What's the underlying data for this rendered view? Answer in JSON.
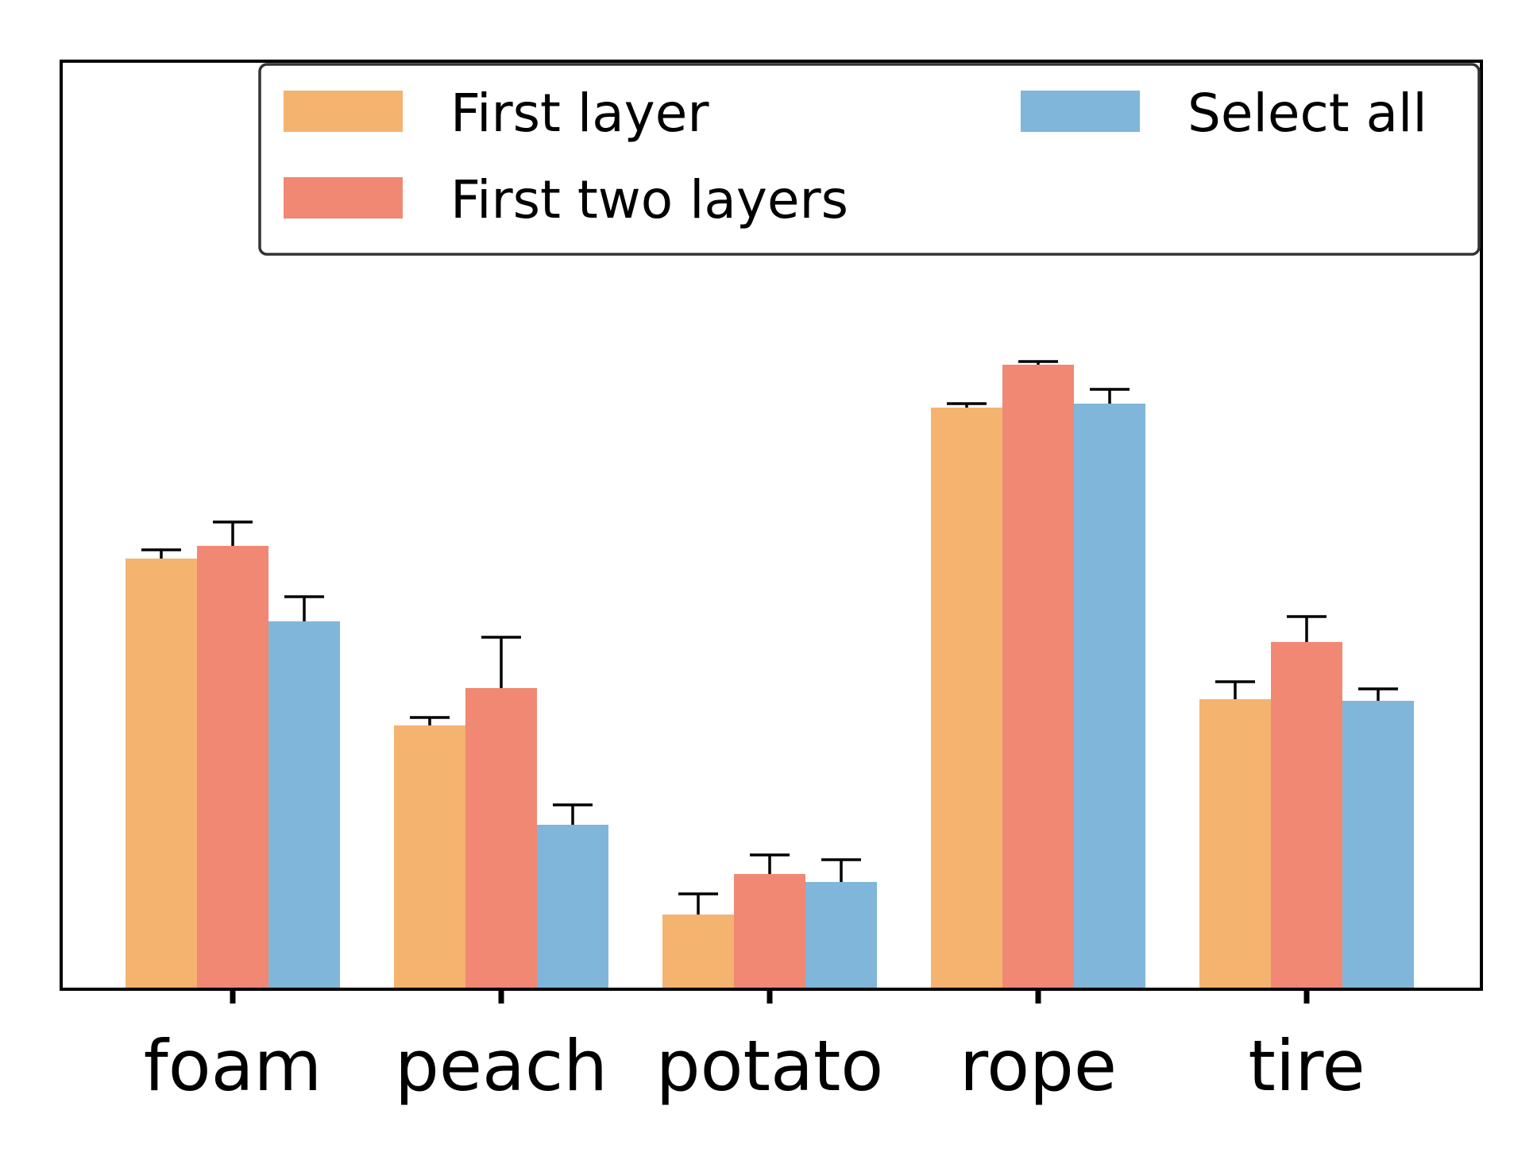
{
  "chart_data": {
    "type": "bar",
    "title": "",
    "xlabel": "",
    "ylabel": "",
    "y_ticks_visible": false,
    "ylim": [
      0,
      1.0
    ],
    "grid": false,
    "legend_placement": "top-right",
    "legend_columns": 2,
    "categories": [
      "foam",
      "peach",
      "potato",
      "rope",
      "tire"
    ],
    "series": [
      {
        "name": "First layer",
        "color": "#F4B36F",
        "values": [
          0.54,
          0.33,
          0.092,
          0.73,
          0.363
        ],
        "errors": [
          0.011,
          0.01,
          0.026,
          0.005,
          0.022
        ]
      },
      {
        "name": "First two layers",
        "color": "#F08873",
        "values": [
          0.556,
          0.377,
          0.143,
          0.784,
          0.435
        ],
        "errors": [
          0.03,
          0.064,
          0.024,
          0.004,
          0.032
        ]
      },
      {
        "name": "Select all",
        "color": "#80B6D9",
        "values": [
          0.461,
          0.205,
          0.133,
          0.735,
          0.361
        ],
        "errors": [
          0.031,
          0.025,
          0.028,
          0.018,
          0.015
        ]
      }
    ]
  }
}
